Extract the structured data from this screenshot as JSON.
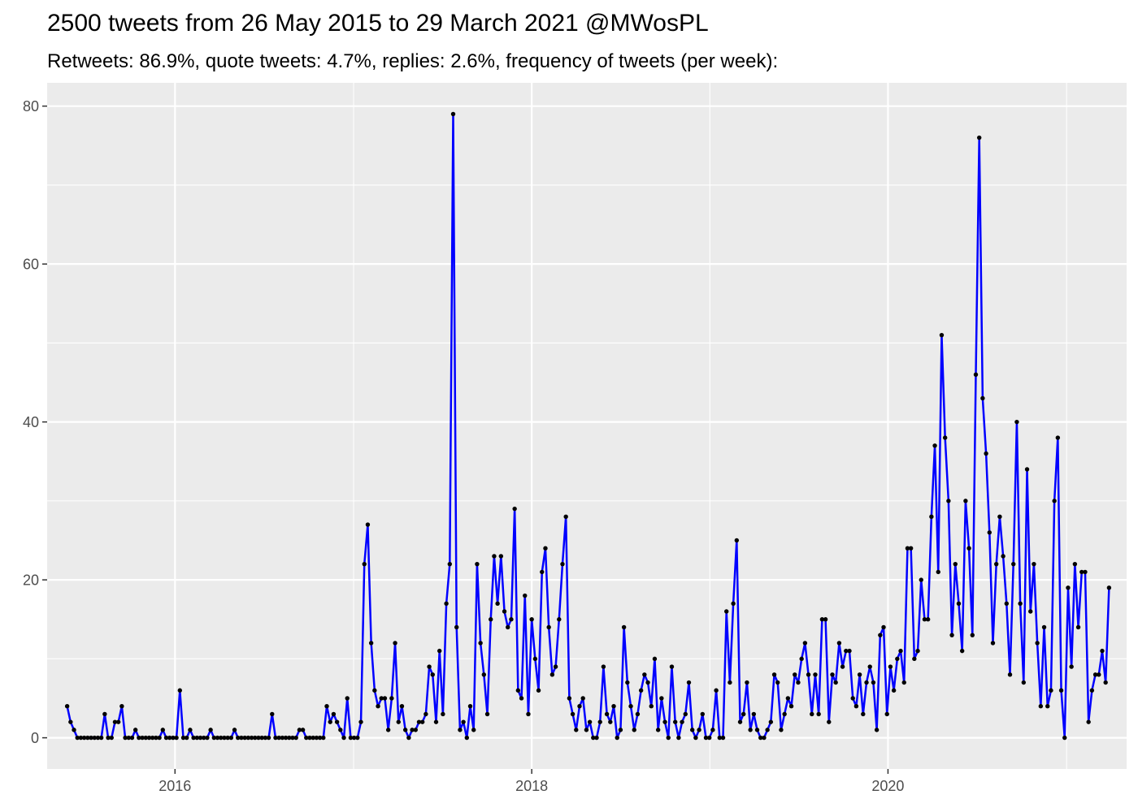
{
  "chart_data": {
    "type": "line",
    "title": "2500 tweets from 26 May 2015 to 29 March 2021 @MWosPL",
    "subtitle": "Retweets: 86.9%, quote tweets: 4.7%, replies: 2.6%, frequency of tweets (per week):",
    "xlabel": "",
    "ylabel": "",
    "x_unit": "week",
    "start_date": "2015-05-25",
    "xlim": [
      "2015-04-14",
      "2021-05-04"
    ],
    "ylim": [
      -3.95,
      82.95
    ],
    "x_ticks": [
      {
        "date": "2016-01-01",
        "label": "2016"
      },
      {
        "date": "2018-01-01",
        "label": "2018"
      },
      {
        "date": "2020-01-01",
        "label": "2020"
      }
    ],
    "y_ticks": [
      0,
      20,
      40,
      60,
      80
    ],
    "grid": true,
    "legend": "none",
    "colors": {
      "line": "#0000ff",
      "points": "#000000",
      "panel": "#ebebeb",
      "grid": "#ffffff"
    },
    "series": [
      {
        "values": [
          4,
          2,
          1,
          0,
          0,
          0,
          0,
          0,
          0,
          0,
          0,
          3,
          0,
          0,
          2,
          2,
          4,
          0,
          0,
          0,
          1,
          0,
          0,
          0,
          0,
          0,
          0,
          0,
          1,
          0,
          0,
          0,
          0,
          6,
          0,
          0,
          1,
          0,
          0,
          0,
          0,
          0,
          1,
          0,
          0,
          0,
          0,
          0,
          0,
          1,
          0,
          0,
          0,
          0,
          0,
          0,
          0,
          0,
          0,
          0,
          3,
          0,
          0,
          0,
          0,
          0,
          0,
          0,
          1,
          1,
          0,
          0,
          0,
          0,
          0,
          0,
          4,
          2,
          3,
          2,
          1,
          0,
          5,
          0,
          0,
          0,
          2,
          22,
          27,
          12,
          6,
          4,
          5,
          5,
          1,
          5,
          12,
          2,
          4,
          1,
          0,
          1,
          1,
          2,
          2,
          3,
          9,
          8,
          2,
          11,
          3,
          17,
          22,
          79,
          14,
          1,
          2,
          0,
          4,
          1,
          22,
          12,
          8,
          3,
          15,
          23,
          17,
          23,
          16,
          14,
          15,
          29,
          6,
          5,
          18,
          3,
          15,
          10,
          6,
          21,
          24,
          14,
          8,
          9,
          15,
          22,
          28,
          5,
          3,
          1,
          4,
          5,
          1,
          2,
          0,
          0,
          2,
          9,
          3,
          2,
          4,
          0,
          1,
          14,
          7,
          4,
          1,
          3,
          6,
          8,
          7,
          4,
          10,
          1,
          5,
          2,
          0,
          9,
          2,
          0,
          2,
          3,
          7,
          1,
          0,
          1,
          3,
          0,
          0,
          1,
          6,
          0,
          0,
          16,
          7,
          17,
          25,
          2,
          3,
          7,
          1,
          3,
          1,
          0,
          0,
          1,
          2,
          8,
          7,
          1,
          3,
          5,
          4,
          8,
          7,
          10,
          12,
          8,
          3,
          8,
          3,
          15,
          15,
          2,
          8,
          7,
          12,
          9,
          11,
          11,
          5,
          4,
          8,
          3,
          7,
          9,
          7,
          1,
          13,
          14,
          3,
          9,
          6,
          10,
          11,
          7,
          24,
          24,
          10,
          11,
          20,
          15,
          15,
          28,
          37,
          21,
          51,
          38,
          30,
          13,
          22,
          17,
          11,
          30,
          24,
          13,
          46,
          76,
          43,
          36,
          26,
          12,
          22,
          28,
          23,
          17,
          8,
          22,
          40,
          17,
          7,
          34,
          16,
          22,
          12,
          4,
          14,
          4,
          6,
          30,
          38,
          6,
          0,
          19,
          9,
          22,
          14,
          21,
          21,
          2,
          6,
          8,
          8,
          11,
          7,
          19
        ]
      }
    ]
  }
}
